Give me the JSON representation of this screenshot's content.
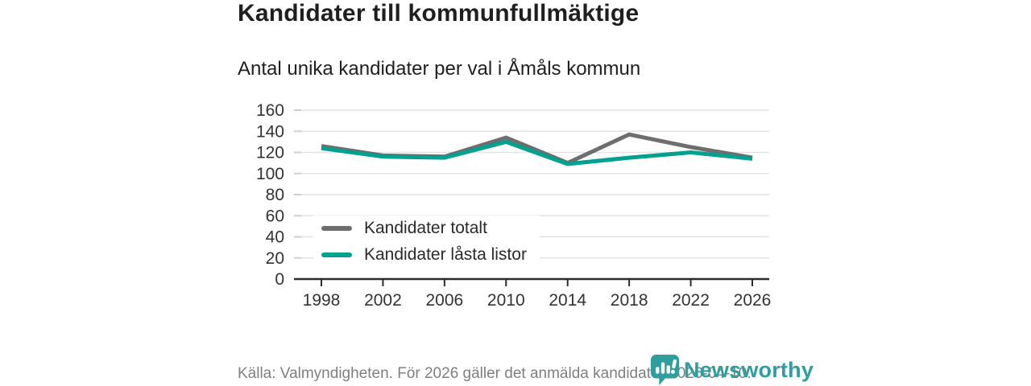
{
  "title": "Kandidater till kommunfullmäktige",
  "subtitle": "Antal unika kandidater per val i Åmåls kommun",
  "source_note": "Källa: Valmyndigheten. För 2026 gäller det anmälda kandidater 2026-04-10.",
  "branding": {
    "wordmark": "Newsworthy",
    "icon": "newsworthy-chart-bubble-icon",
    "color": "#2f9e9e"
  },
  "colors": {
    "title_text": "#1f1f1f",
    "axis_text": "#333333",
    "grid_line": "#e3e3e3",
    "grid_stub": "#cfcfcf",
    "axis_line": "#2b2b2b",
    "source_text": "#7f7f7f"
  },
  "chart_data": {
    "type": "line",
    "x": [
      "1998",
      "2002",
      "2006",
      "2010",
      "2014",
      "2018",
      "2022",
      "2026"
    ],
    "series": [
      {
        "name": "Kandidater totalt",
        "color": "#6e6e6e",
        "values": [
          126,
          117,
          116,
          134,
          110,
          137,
          125,
          115
        ]
      },
      {
        "name": "Kandidater låsta listor",
        "color": "#00a18f",
        "values": [
          124,
          116,
          115,
          130,
          109,
          115,
          120,
          114
        ]
      }
    ],
    "ylim": [
      0,
      160
    ],
    "yticks": [
      0,
      20,
      40,
      60,
      80,
      100,
      120,
      140,
      160
    ],
    "grid": true,
    "legend_position": "inside-bottom-left"
  }
}
